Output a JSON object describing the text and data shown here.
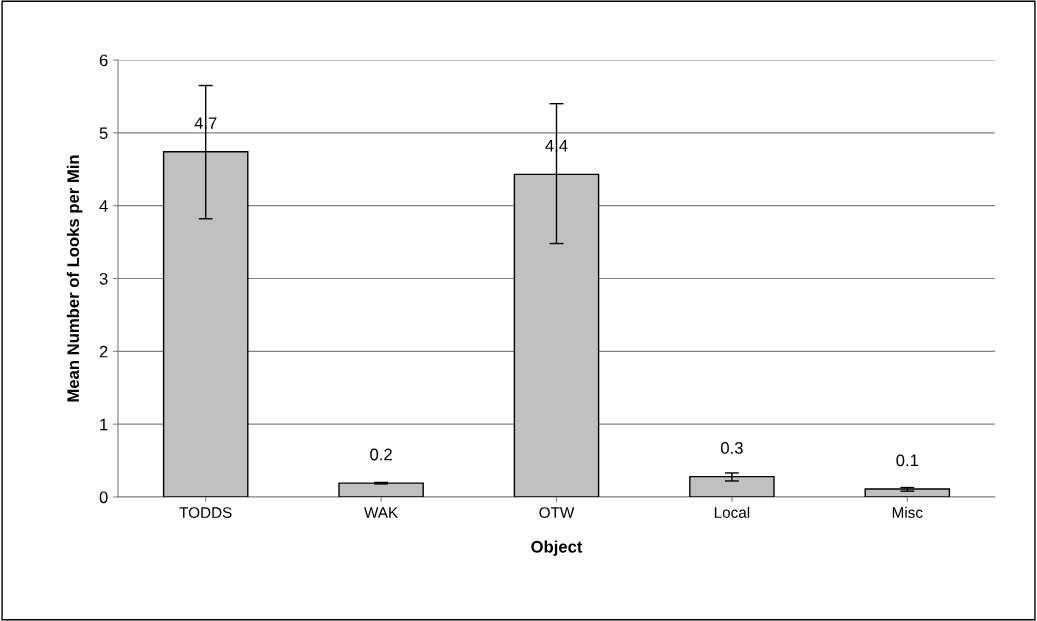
{
  "chart_data": {
    "type": "bar",
    "xlabel": "Object",
    "ylabel": "Mean Number of Looks per Min",
    "categories": [
      "TODDS",
      "WAK",
      "OTW",
      "Local",
      "Misc"
    ],
    "values": [
      4.74,
      0.19,
      4.43,
      0.28,
      0.11
    ],
    "errors": [
      [
        3.82,
        5.65
      ],
      [
        0.18,
        0.2
      ],
      [
        3.48,
        5.4
      ],
      [
        0.22,
        0.33
      ],
      [
        0.08,
        0.13
      ]
    ],
    "value_labels": [
      "4.7",
      "0.2",
      "4.4",
      "0.3",
      "0.1"
    ],
    "color": "#c0c0c0",
    "ylim": [
      0,
      6
    ],
    "yticks": [
      0,
      1,
      2,
      3,
      4,
      5,
      6
    ],
    "grid": "y",
    "legend": false
  }
}
